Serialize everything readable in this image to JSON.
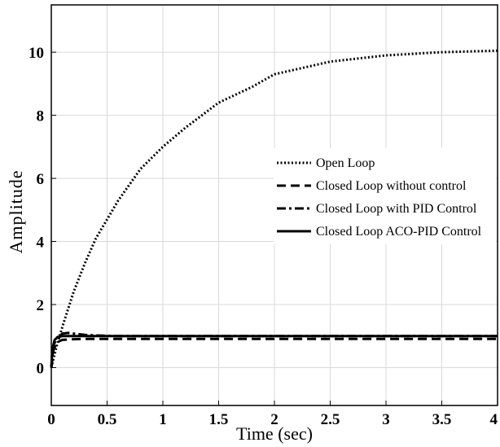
{
  "chart_data": {
    "type": "line",
    "title": "",
    "xlabel": "Time (sec)",
    "ylabel": "Amplitude",
    "xlim": [
      0,
      4
    ],
    "ylim": [
      -1.2,
      11.5
    ],
    "x_ticks": [
      "0",
      "0.5",
      "1",
      "1.5",
      "2",
      "2.5",
      "3",
      "3.5",
      "4"
    ],
    "y_ticks": [
      "0",
      "2",
      "4",
      "6",
      "8",
      "10"
    ],
    "grid": true,
    "legend_position": "right-middle",
    "series": [
      {
        "name": "Open Loop",
        "style": "dotted",
        "x": [
          0,
          0.05,
          0.1,
          0.2,
          0.3,
          0.4,
          0.5,
          0.6,
          0.8,
          1.0,
          1.2,
          1.5,
          1.8,
          2.0,
          2.5,
          3.0,
          3.5,
          4.0
        ],
        "y": [
          0,
          0.7,
          1.3,
          2.4,
          3.3,
          4.1,
          4.7,
          5.3,
          6.3,
          7.0,
          7.6,
          8.4,
          8.9,
          9.3,
          9.7,
          9.9,
          10.0,
          10.05
        ]
      },
      {
        "name": "Closed Loop without control",
        "style": "dashed",
        "x": [
          0,
          0.02,
          0.05,
          0.1,
          0.2,
          0.3,
          0.5,
          1,
          2,
          3,
          4
        ],
        "y": [
          0,
          0.55,
          0.8,
          0.88,
          0.9,
          0.91,
          0.91,
          0.91,
          0.91,
          0.91,
          0.91
        ]
      },
      {
        "name": "Closed Loop with PID Control",
        "style": "dashdot",
        "x": [
          0,
          0.02,
          0.05,
          0.1,
          0.15,
          0.2,
          0.3,
          0.4,
          0.6,
          1,
          2,
          3,
          4
        ],
        "y": [
          0,
          0.7,
          0.95,
          1.08,
          1.1,
          1.08,
          1.04,
          1.02,
          1.0,
          1.0,
          1.0,
          1.0,
          1.0
        ]
      },
      {
        "name": "Closed Loop ACO-PID Control",
        "style": "solid",
        "x": [
          0,
          0.01,
          0.03,
          0.06,
          0.1,
          0.2,
          0.5,
          1,
          2,
          3,
          4
        ],
        "y": [
          0,
          0.6,
          0.88,
          0.97,
          1.0,
          1.0,
          1.0,
          1.0,
          1.0,
          1.0,
          1.0
        ]
      }
    ]
  }
}
